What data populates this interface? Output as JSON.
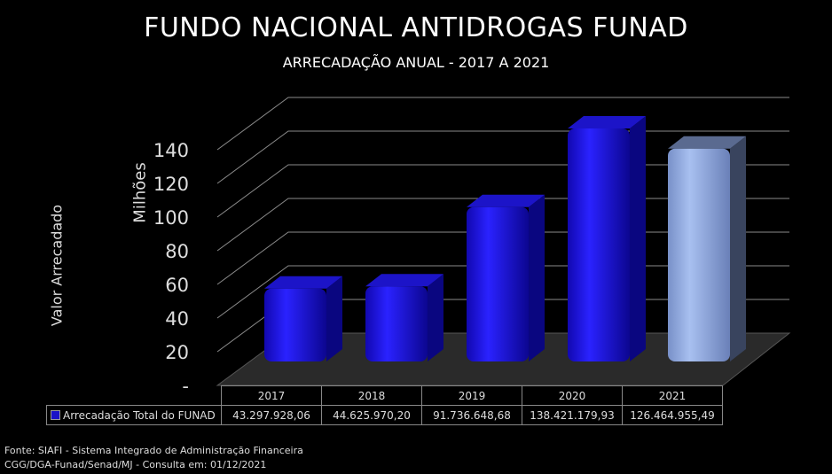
{
  "chart_data": {
    "type": "bar",
    "title": "FUNDO NACIONAL ANTIDROGAS FUNAD",
    "subtitle": "ARRECADAÇÃO ANUAL - 2017 A 2021",
    "ylabel": "Valor Arrecadado",
    "yunits": "Milhões",
    "ylim": [
      0,
      140
    ],
    "yticks": [
      "-",
      "20",
      "40",
      "60",
      "80",
      "100",
      "120",
      "140"
    ],
    "grid": true,
    "style": "3d",
    "categories": [
      "2017",
      "2018",
      "2019",
      "2020",
      "2021"
    ],
    "series": [
      {
        "name": "Arrecadação Total do FUNAD",
        "values": [
          43297928.06,
          44625970.2,
          91736648.68,
          138421179.93,
          126464955.49
        ],
        "labels": [
          "43.297.928,06",
          "44.625.970,20",
          "91.736.648,68",
          "138.421.179,93",
          "126.464.955,49"
        ],
        "color": "#1a12e6",
        "highlight_last_color": "#8fa8dc"
      }
    ],
    "legend": "data-table"
  },
  "footer": {
    "line1": "Fonte: SIAFI - Sistema Integrado de Administração Financeira",
    "line2": "CGG/DGA-Funad/Senad/MJ  - Consulta em: 01/12/2021"
  }
}
